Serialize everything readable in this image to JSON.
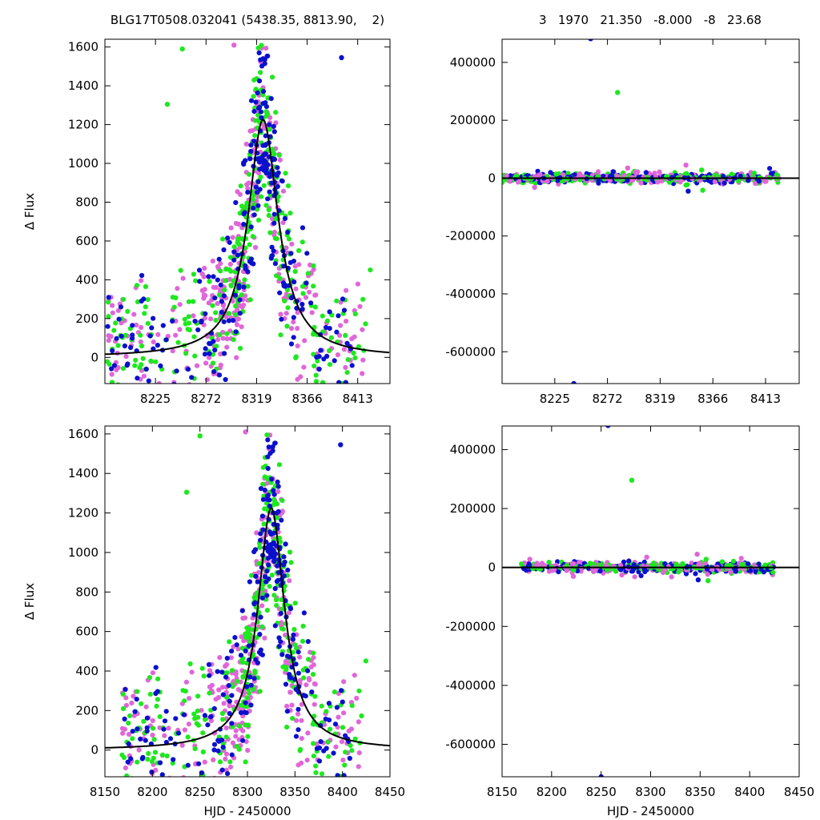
{
  "header": {
    "left_title": "BLG17T0508.032041 (5438.35, 8813.90,    2)",
    "right_title": "3   1970   21.350   -8.000   -8   23.68"
  },
  "colors": {
    "magenta": "#e066d8",
    "green": "#1ee81e",
    "blue": "#0a10cc",
    "model": "#000000",
    "frame": "#000000"
  },
  "chart_data": [
    {
      "id": "top-left",
      "type": "scatter",
      "title": "BLG17T0508.032041 (5438.35, 8813.90,    2)",
      "xlabel": "",
      "ylabel": "Δ Flux",
      "xlim": [
        8178,
        8443
      ],
      "ylim": [
        -135,
        1640
      ],
      "xticks": [
        8225,
        8272,
        8319,
        8366,
        8413
      ],
      "yticks": [
        0,
        200,
        400,
        600,
        800,
        1000,
        1200,
        1400,
        1600
      ],
      "model": {
        "t0": 8325,
        "peak": 1225,
        "width": 17
      },
      "series": [
        {
          "color": "magenta",
          "seed": 11,
          "count": 360,
          "xrange": [
            8178,
            8420
          ],
          "center": 8318,
          "spread": 55,
          "ymax": 1640
        },
        {
          "color": "green",
          "seed": 23,
          "count": 330,
          "xrange": [
            8180,
            8425
          ],
          "center": 8320,
          "spread": 45,
          "ymax": 1640
        },
        {
          "color": "blue",
          "seed": 37,
          "count": 260,
          "xrange": [
            8180,
            8410
          ],
          "center": 8325,
          "spread": 35,
          "ymax": 1600
        }
      ],
      "outliers": [
        {
          "x": 8250,
          "y": 1590,
          "color": "green"
        },
        {
          "x": 8298,
          "y": 1610,
          "color": "magenta"
        },
        {
          "x": 8398,
          "y": 1545,
          "color": "blue"
        },
        {
          "x": 8236,
          "y": 1305,
          "color": "green"
        }
      ]
    },
    {
      "id": "top-right",
      "type": "scatter",
      "title": "3   1970   21.350   -8.000   -8   23.68",
      "xlabel": "",
      "ylabel": "",
      "xlim": [
        8178,
        8443
      ],
      "ylim": [
        -710000,
        480000
      ],
      "xticks": [
        8225,
        8272,
        8319,
        8366,
        8413
      ],
      "yticks": [
        400000,
        200000,
        0,
        -200000,
        -400000,
        -600000
      ],
      "ytick_labels": [
        "400000",
        "200000",
        "0",
        "-200000",
        "-400000",
        "-600000"
      ],
      "residual_band": {
        "xrange": [
          8178,
          8425
        ],
        "amplitude": 9000
      },
      "outliers": [
        {
          "x": 8257,
          "y": 482000,
          "color": "blue"
        },
        {
          "x": 8242,
          "y": -710000,
          "color": "blue"
        },
        {
          "x": 8281,
          "y": 296000,
          "color": "green"
        },
        {
          "x": 8342,
          "y": 45000,
          "color": "magenta"
        },
        {
          "x": 8290,
          "y": 35000,
          "color": "magenta"
        },
        {
          "x": 8277,
          "y": 22000,
          "color": "blue"
        },
        {
          "x": 8356,
          "y": 28000,
          "color": "green"
        },
        {
          "x": 8344,
          "y": -45000,
          "color": "blue"
        },
        {
          "x": 8357,
          "y": -42000,
          "color": "green"
        },
        {
          "x": 8207,
          "y": -32000,
          "color": "magenta"
        }
      ]
    },
    {
      "id": "bottom-left",
      "type": "scatter",
      "title": "",
      "xlabel": "HJD - 2450000",
      "ylabel": "Δ Flux",
      "xlim": [
        8150,
        8450
      ],
      "ylim": [
        -135,
        1640
      ],
      "xticks": [
        8150,
        8200,
        8250,
        8300,
        8350,
        8400,
        8450
      ],
      "yticks": [
        0,
        200,
        400,
        600,
        800,
        1000,
        1200,
        1400,
        1600
      ],
      "model": {
        "t0": 8325,
        "peak": 1225,
        "width": 17
      },
      "series": [
        {
          "color": "magenta",
          "seed": 11,
          "count": 360,
          "xrange": [
            8165,
            8420
          ],
          "center": 8318,
          "spread": 55,
          "ymax": 1640
        },
        {
          "color": "green",
          "seed": 23,
          "count": 330,
          "xrange": [
            8168,
            8425
          ],
          "center": 8320,
          "spread": 45,
          "ymax": 1640
        },
        {
          "color": "blue",
          "seed": 37,
          "count": 260,
          "xrange": [
            8170,
            8410
          ],
          "center": 8325,
          "spread": 35,
          "ymax": 1600
        }
      ],
      "outliers": [
        {
          "x": 8250,
          "y": 1590,
          "color": "green"
        },
        {
          "x": 8298,
          "y": 1610,
          "color": "magenta"
        },
        {
          "x": 8398,
          "y": 1545,
          "color": "blue"
        },
        {
          "x": 8236,
          "y": 1305,
          "color": "green"
        }
      ]
    },
    {
      "id": "bottom-right",
      "type": "scatter",
      "title": "",
      "xlabel": "HJD - 2450000",
      "ylabel": "",
      "xlim": [
        8150,
        8450
      ],
      "ylim": [
        -710000,
        480000
      ],
      "xticks": [
        8150,
        8200,
        8250,
        8300,
        8350,
        8400,
        8450
      ],
      "yticks": [
        400000,
        200000,
        0,
        -200000,
        -400000,
        -600000
      ],
      "ytick_labels": [
        "400000",
        "200000",
        "0",
        "-200000",
        "-400000",
        "-600000"
      ],
      "residual_band": {
        "xrange": [
          8168,
          8425
        ],
        "amplitude": 9000
      },
      "outliers": [
        {
          "x": 8257,
          "y": 482000,
          "color": "blue"
        },
        {
          "x": 8250,
          "y": -710000,
          "color": "blue"
        },
        {
          "x": 8281,
          "y": 296000,
          "color": "green"
        },
        {
          "x": 8347,
          "y": 45000,
          "color": "magenta"
        },
        {
          "x": 8296,
          "y": 35000,
          "color": "magenta"
        },
        {
          "x": 8278,
          "y": 22000,
          "color": "blue"
        },
        {
          "x": 8356,
          "y": 28000,
          "color": "green"
        },
        {
          "x": 8348,
          "y": -42000,
          "color": "blue"
        },
        {
          "x": 8358,
          "y": -45000,
          "color": "green"
        },
        {
          "x": 8222,
          "y": -30000,
          "color": "magenta"
        },
        {
          "x": 8178,
          "y": 28000,
          "color": "magenta"
        }
      ]
    }
  ]
}
